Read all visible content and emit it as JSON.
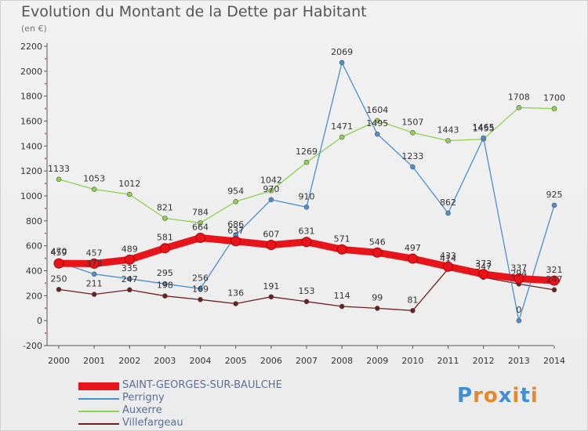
{
  "title": "Evolution du Montant de la Dette par Habitant",
  "subtitle": "(en €)",
  "logo": {
    "text": "Proxiti",
    "letters": [
      "P",
      "r",
      "o",
      "x",
      "i",
      "t",
      "i"
    ],
    "colors": [
      "#3d8fd8",
      "#e8872a",
      "#e8872a",
      "#3d8fd8",
      "#e8872a",
      "#3d8fd8",
      "#e8872a"
    ]
  },
  "chart_data": {
    "type": "line",
    "title": "Evolution du Montant de la Dette par Habitant",
    "ylabel": "(en €)",
    "xlabel": "",
    "x": [
      "2000",
      "2001",
      "2002",
      "2003",
      "2004",
      "2005",
      "2006",
      "2007",
      "2008",
      "2009",
      "2010",
      "2011",
      "2012",
      "2013",
      "2014"
    ],
    "ylim": [
      -200,
      2200
    ],
    "yticks": [
      -200,
      0,
      200,
      400,
      600,
      800,
      1000,
      1200,
      1400,
      1600,
      1800,
      2000,
      2200
    ],
    "grid": false,
    "legend": "bottom-left",
    "series": [
      {
        "name": "SAINT-GEORGES-SUR-BAULCHE",
        "color": "#e8141b",
        "values": [
          459,
          457,
          489,
          581,
          664,
          637,
          607,
          631,
          571,
          546,
          497,
          433,
          373,
          337,
          321
        ],
        "labels": [
          "459",
          "457",
          "489",
          "581",
          "664",
          "637",
          "607",
          "631",
          "571",
          "546",
          "497",
          "433",
          "373",
          "337",
          "321"
        ]
      },
      {
        "name": "Perrigny",
        "color": "#4a8fcf",
        "values": [
          470,
          373,
          335,
          295,
          256,
          686,
          970,
          910,
          2069,
          1495,
          1233,
          862,
          1465,
          0,
          925
        ],
        "labels": [
          "470",
          "373",
          "335",
          "295",
          "256",
          "686",
          "970",
          "910",
          "2069",
          "1495",
          "1233",
          "862",
          "1465",
          "0",
          "925"
        ]
      },
      {
        "name": "Auxerre",
        "color": "#8fd14f",
        "values": [
          1133,
          1053,
          1012,
          821,
          784,
          954,
          1042,
          1269,
          1471,
          1604,
          1507,
          1443,
          1455,
          1708,
          1700
        ],
        "labels": [
          "1133",
          "1053",
          "1012",
          "821",
          "784",
          "954",
          "1042",
          "1269",
          "1471",
          "1604",
          "1507",
          "1443",
          "1455",
          "1708",
          "1700"
        ]
      },
      {
        "name": "Villefargeau",
        "color": "#6b2020",
        "values": [
          250,
          211,
          247,
          198,
          169,
          136,
          191,
          153,
          114,
          99,
          81,
          414,
          347,
          294,
          247
        ],
        "labels": [
          "250",
          "211",
          "247",
          "198",
          "169",
          "136",
          "191",
          "153",
          "114",
          "99",
          "81",
          "414",
          "347",
          "294",
          "247"
        ]
      }
    ]
  }
}
